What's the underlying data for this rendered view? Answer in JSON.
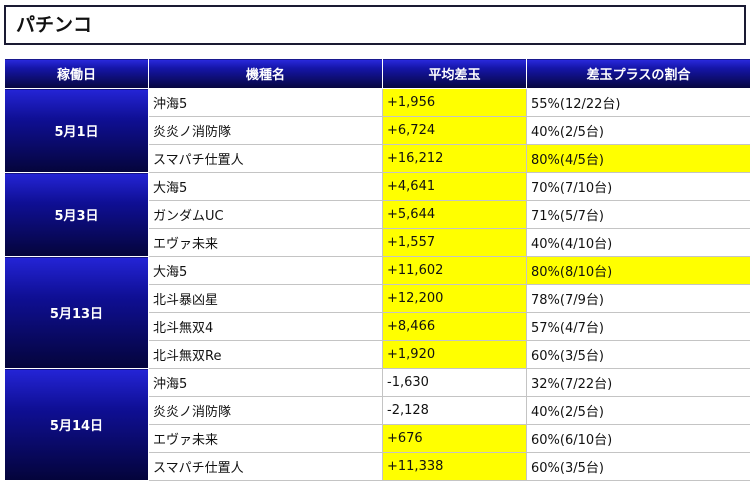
{
  "page": {
    "title": "パチンコ"
  },
  "table": {
    "headers": [
      "稼働日",
      "機種名",
      "平均差玉",
      "差玉プラスの割合"
    ],
    "colors": {
      "highlight": "#ffff00",
      "header_top": "#2a2adf",
      "header_bottom": "#06063d"
    },
    "groups": [
      {
        "date": "5月1日",
        "rows": [
          {
            "machine": "沖海5",
            "avg": "+1,956",
            "avg_highlight": true,
            "ratio": "55%(12/22台)",
            "ratio_highlight": false
          },
          {
            "machine": "炎炎ノ消防隊",
            "avg": "+6,724",
            "avg_highlight": true,
            "ratio": "40%(2/5台)",
            "ratio_highlight": false
          },
          {
            "machine": "スマパチ仕置人",
            "avg": "+16,212",
            "avg_highlight": true,
            "ratio": "80%(4/5台)",
            "ratio_highlight": true
          }
        ]
      },
      {
        "date": "5月3日",
        "rows": [
          {
            "machine": "大海5",
            "avg": "+4,641",
            "avg_highlight": true,
            "ratio": "70%(7/10台)",
            "ratio_highlight": false
          },
          {
            "machine": "ガンダムUC",
            "avg": "+5,644",
            "avg_highlight": true,
            "ratio": "71%(5/7台)",
            "ratio_highlight": false
          },
          {
            "machine": "エヴァ未来",
            "avg": "+1,557",
            "avg_highlight": true,
            "ratio": "40%(4/10台)",
            "ratio_highlight": false
          }
        ]
      },
      {
        "date": "5月13日",
        "rows": [
          {
            "machine": "大海5",
            "avg": "+11,602",
            "avg_highlight": true,
            "ratio": "80%(8/10台)",
            "ratio_highlight": true
          },
          {
            "machine": "北斗暴凶星",
            "avg": "+12,200",
            "avg_highlight": true,
            "ratio": "78%(7/9台)",
            "ratio_highlight": false
          },
          {
            "machine": "北斗無双4",
            "avg": "+8,466",
            "avg_highlight": true,
            "ratio": "57%(4/7台)",
            "ratio_highlight": false
          },
          {
            "machine": "北斗無双Re",
            "avg": "+1,920",
            "avg_highlight": true,
            "ratio": "60%(3/5台)",
            "ratio_highlight": false
          }
        ]
      },
      {
        "date": "5月14日",
        "rows": [
          {
            "machine": "沖海5",
            "avg": "-1,630",
            "avg_highlight": false,
            "ratio": "32%(7/22台)",
            "ratio_highlight": false
          },
          {
            "machine": "炎炎ノ消防隊",
            "avg": "-2,128",
            "avg_highlight": false,
            "ratio": "40%(2/5台)",
            "ratio_highlight": false
          },
          {
            "machine": "エヴァ未来",
            "avg": "+676",
            "avg_highlight": true,
            "ratio": "60%(6/10台)",
            "ratio_highlight": false
          },
          {
            "machine": "スマパチ仕置人",
            "avg": "+11,338",
            "avg_highlight": true,
            "ratio": "60%(3/5台)",
            "ratio_highlight": false
          }
        ]
      }
    ]
  }
}
